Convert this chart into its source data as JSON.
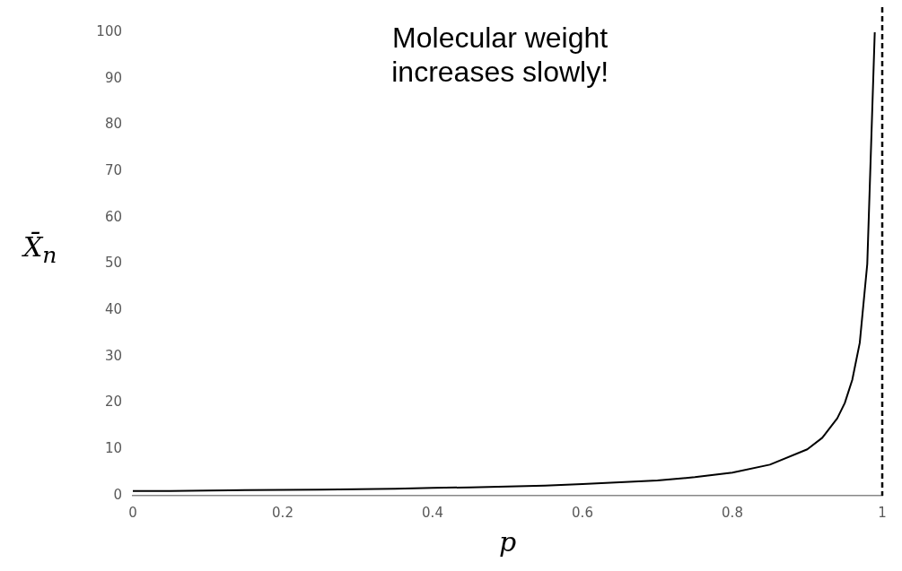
{
  "chart_data": {
    "type": "line",
    "xlabel": "p",
    "ylabel": "X̄$_{n}$",
    "annotations": [
      "Molecular weight\nincreases slowly!"
    ],
    "series": [
      {
        "color": "#000000",
        "x": [
          0,
          0.05,
          0.1,
          0.15,
          0.2,
          0.25,
          0.3,
          0.35,
          0.4,
          0.45,
          0.5,
          0.55,
          0.6,
          0.65,
          0.7,
          0.75,
          0.8,
          0.85,
          0.9,
          0.92,
          0.94,
          0.95,
          0.96,
          0.97,
          0.98,
          0.99
        ],
        "values": [
          1,
          1,
          1.1,
          1.2,
          1.25,
          1.3,
          1.4,
          1.5,
          1.7,
          1.8,
          2,
          2.2,
          2.5,
          2.9,
          3.3,
          4,
          5,
          6.7,
          10,
          12.5,
          16.7,
          20,
          25,
          33,
          50,
          100
        ]
      }
    ],
    "xlim": [
      0,
      1
    ],
    "xticks": [
      0,
      0.2,
      0.4,
      0.6,
      0.8,
      1
    ],
    "ylim": [
      0,
      100
    ],
    "yticks": [
      0,
      10,
      20,
      30,
      40,
      50,
      60,
      70,
      80,
      90,
      100
    ],
    "grid": false,
    "legend": false,
    "marker": "none",
    "line_style": "solid",
    "ref_lines": [
      {
        "axis": "x",
        "value": 1,
        "color": "#000000",
        "line_style": "dashed"
      }
    ]
  }
}
